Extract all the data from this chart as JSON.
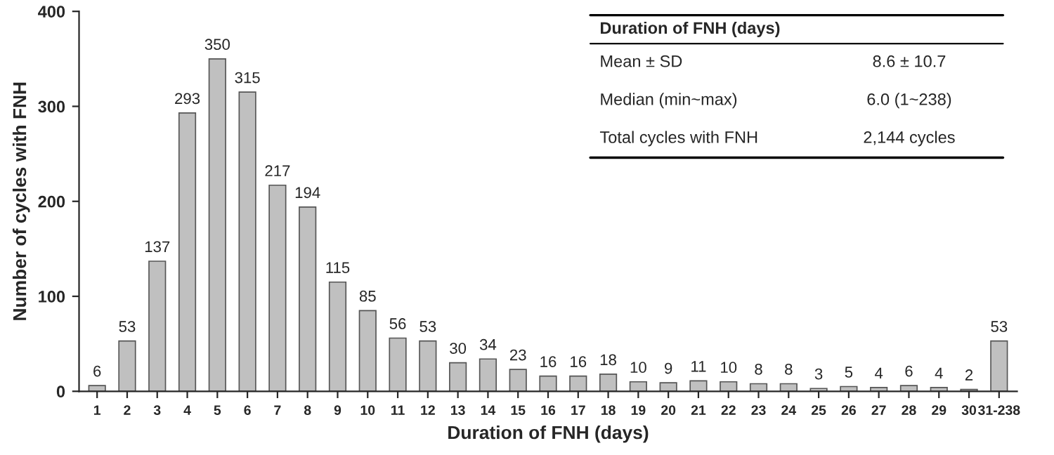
{
  "chart_data": {
    "type": "bar",
    "xlabel": "Duration of FNH (days)",
    "ylabel": "Number of cycles with FNH",
    "categories": [
      "1",
      "2",
      "3",
      "4",
      "5",
      "6",
      "7",
      "8",
      "9",
      "10",
      "11",
      "12",
      "13",
      "14",
      "15",
      "16",
      "17",
      "18",
      "19",
      "20",
      "21",
      "22",
      "23",
      "24",
      "25",
      "26",
      "27",
      "28",
      "29",
      "30",
      "31-238"
    ],
    "values": [
      6,
      53,
      137,
      293,
      350,
      315,
      217,
      194,
      115,
      85,
      56,
      53,
      30,
      34,
      23,
      16,
      16,
      18,
      10,
      9,
      11,
      10,
      8,
      8,
      3,
      5,
      4,
      6,
      4,
      2,
      53
    ],
    "color": "#c0c0c0",
    "ylim": [
      0,
      400
    ],
    "yticks": [
      0,
      100,
      200,
      300,
      400
    ],
    "grid": false,
    "data_labels": true,
    "annotations": [
      "Duration of FNH (days)",
      "Mean ± SD",
      "8.6 ± 10.7",
      "Median (min~max)",
      "6.0 (1~238)",
      "Total cycles with FNH",
      "2,144 cycles"
    ]
  }
}
